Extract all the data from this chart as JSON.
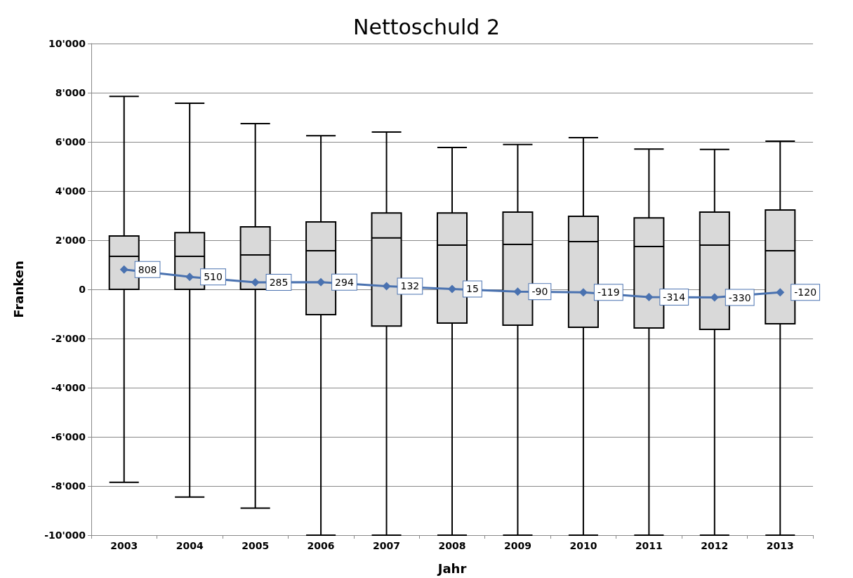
{
  "chart_data": {
    "type": "box",
    "title": "Nettoschuld 2",
    "xlabel": "Jahr",
    "ylabel": "Franken",
    "categories": [
      "2003",
      "2004",
      "2005",
      "2006",
      "2007",
      "2008",
      "2009",
      "2010",
      "2011",
      "2012",
      "2013"
    ],
    "series": [
      {
        "color": "#d9d9d9",
        "boxes": [
          {
            "low": -7850,
            "q1": 0,
            "median": 1340,
            "q3": 2170,
            "high": 7850
          },
          {
            "low": -8450,
            "q1": 0,
            "median": 1340,
            "q3": 2310,
            "high": 7570
          },
          {
            "low": -8900,
            "q1": 0,
            "median": 1400,
            "q3": 2540,
            "high": 6740
          },
          {
            "low": -10000,
            "q1": -1030,
            "median": 1570,
            "q3": 2740,
            "high": 6250
          },
          {
            "low": -10000,
            "q1": -1490,
            "median": 2090,
            "q3": 3110,
            "high": 6400
          },
          {
            "low": -10000,
            "q1": -1370,
            "median": 1800,
            "q3": 3110,
            "high": 5770
          },
          {
            "low": -10000,
            "q1": -1460,
            "median": 1830,
            "q3": 3140,
            "high": 5890
          },
          {
            "low": -10000,
            "q1": -1540,
            "median": 1940,
            "q3": 2970,
            "high": 6170
          },
          {
            "low": -10000,
            "q1": -1570,
            "median": 1740,
            "q3": 2910,
            "high": 5710
          },
          {
            "low": -10000,
            "q1": -1630,
            "median": 1800,
            "q3": 3140,
            "high": 5690
          },
          {
            "low": -10000,
            "q1": -1400,
            "median": 1570,
            "q3": 3230,
            "high": 6030
          }
        ]
      },
      {
        "type": "line",
        "color": "#4a72b0",
        "values": [
          808,
          510,
          285,
          294,
          132,
          15,
          -90,
          -119,
          -314,
          -330,
          -120
        ],
        "value_labels": [
          "808",
          "510",
          "285",
          "294",
          "132",
          "15",
          "-90",
          "-119",
          "-314",
          "-330",
          "-120"
        ]
      }
    ],
    "marker": "diamond",
    "line_style": "solid",
    "grid": "y",
    "ylim": [
      -10000,
      10000
    ],
    "yticks": [
      {
        "value": -10000,
        "label": "-10'000"
      },
      {
        "value": -8000,
        "label": "-8'000"
      },
      {
        "value": -6000,
        "label": "-6'000"
      },
      {
        "value": -4000,
        "label": "-4'000"
      },
      {
        "value": -2000,
        "label": "-2'000"
      },
      0,
      {
        "value": 2000,
        "label": "2'000"
      },
      {
        "value": 4000,
        "label": "4'000"
      },
      {
        "value": 6000,
        "label": "6'000"
      },
      {
        "value": 8000,
        "label": "8'000"
      },
      {
        "value": 10000,
        "label": "10'000"
      }
    ]
  }
}
